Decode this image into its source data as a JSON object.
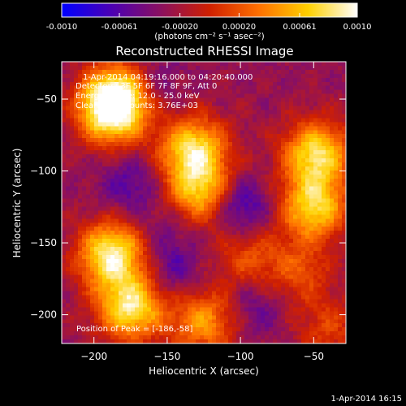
{
  "colorbar": {
    "ticks": [
      "-0.0010",
      "-0.00061",
      "-0.00020",
      "0.00020",
      "0.00061",
      "0.0010"
    ],
    "units_label": "(photons cm⁻² s⁻¹ asec⁻²)",
    "stops": [
      "#0000ff",
      "#4b00b4",
      "#8a1060",
      "#d02000",
      "#ff7000",
      "#ffd000",
      "#ffffff"
    ]
  },
  "chart_data": {
    "type": "heatmap",
    "title": "Reconstructed RHESSI Image",
    "xlabel": "Heliocentric X (arcsec)",
    "ylabel": "Heliocentric Y (arcsec)",
    "xlim": [
      -222,
      -28
    ],
    "ylim": [
      -220,
      -24
    ],
    "xticks": [
      -200,
      -150,
      -100,
      -50
    ],
    "yticks": [
      -50,
      -100,
      -150,
      -200
    ],
    "zlim": [
      -0.001,
      0.001
    ],
    "annotations": [
      "1-Apr-2014 04:19:16.000 to 04:20:40.000",
      "Detectors: 3F 5F 6F 7F 8F 9F, Att 0",
      "Energy Range: 12.0 - 25.0 keV",
      "Clean. Total counts: 3.76E+03",
      "Position of Peak = [-186,-58]"
    ],
    "peak": [
      -186,
      -58
    ],
    "sources": [
      {
        "x": -188,
        "y": -58,
        "amp": 1.0
      },
      {
        "x": -182,
        "y": -45,
        "amp": 0.6
      },
      {
        "x": -132,
        "y": -85,
        "amp": 0.85
      },
      {
        "x": -128,
        "y": -115,
        "amp": 0.7
      },
      {
        "x": -48,
        "y": -88,
        "amp": 0.85
      },
      {
        "x": -50,
        "y": -125,
        "amp": 0.8
      },
      {
        "x": -188,
        "y": -158,
        "amp": 0.95
      },
      {
        "x": -175,
        "y": -195,
        "amp": 0.9
      },
      {
        "x": -125,
        "y": -205,
        "amp": 0.6
      },
      {
        "x": -60,
        "y": -170,
        "amp": 0.35
      },
      {
        "x": -95,
        "y": -160,
        "amp": 0.35
      },
      {
        "x": -40,
        "y": -210,
        "amp": 0.3
      }
    ],
    "sinks": [
      {
        "x": -160,
        "y": -40,
        "amp": 0.5
      },
      {
        "x": -175,
        "y": -110,
        "amp": 0.6
      },
      {
        "x": -100,
        "y": -125,
        "amp": 0.9
      },
      {
        "x": -145,
        "y": -170,
        "amp": 0.55
      },
      {
        "x": -90,
        "y": -195,
        "amp": 0.5
      },
      {
        "x": -150,
        "y": -140,
        "amp": 0.35
      }
    ]
  },
  "footer": {
    "timestamp": "1-Apr-2014 16:15"
  }
}
